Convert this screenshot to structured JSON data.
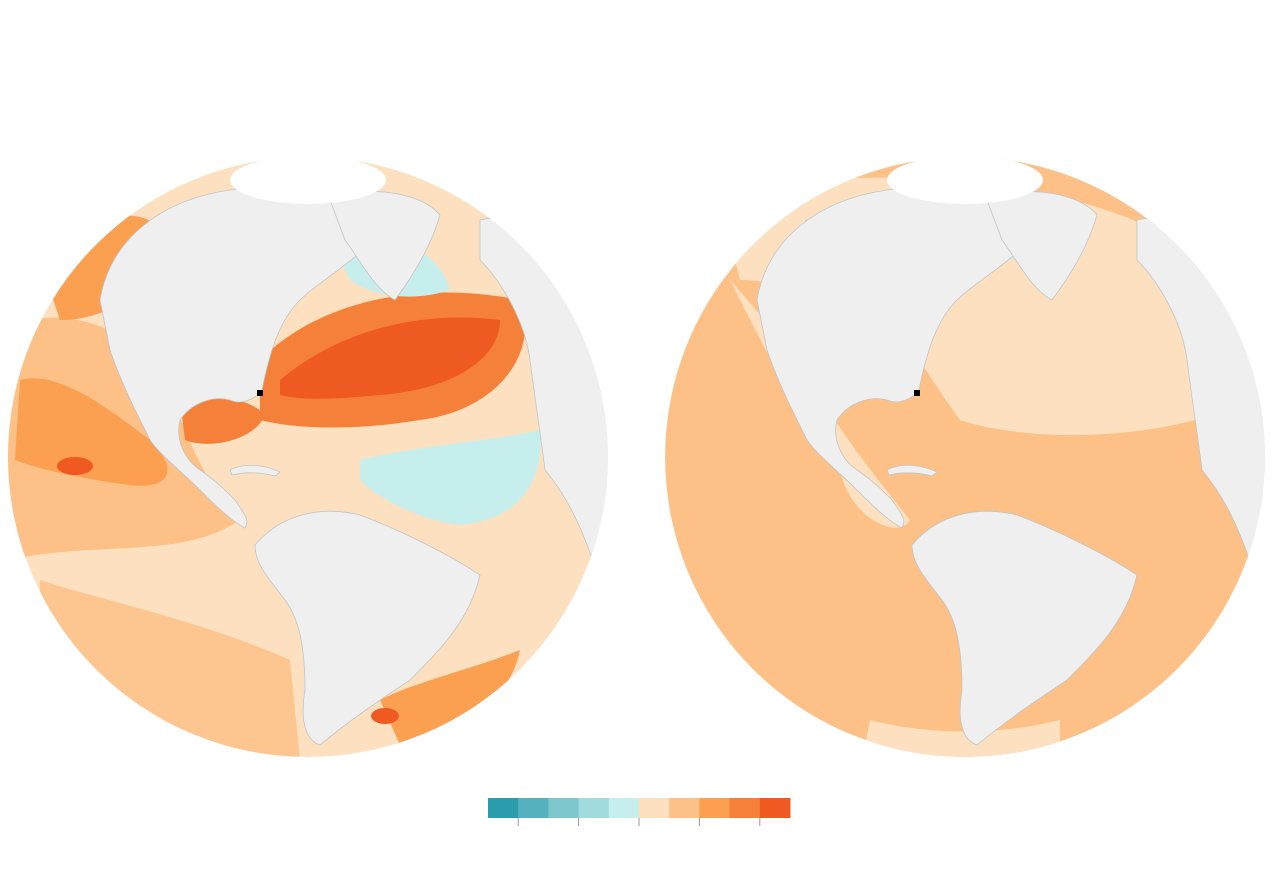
{
  "maps": [
    {
      "name": "observed-anomaly",
      "base_color": "#fde0c0"
    },
    {
      "name": "projected-anomaly",
      "base_color": "#fdc086"
    }
  ],
  "land_color": "#efefef",
  "border_color": "#c4c4c4",
  "ice_color": "#ffffff",
  "marker_color": "#000000",
  "legend": {
    "colors": [
      "#2a9cab",
      "#55b1bd",
      "#7cc6cc",
      "#a1dbde",
      "#c6eeec",
      "#fde0c0",
      "#fdc086",
      "#fb9f50",
      "#f5803a",
      "#ef5a22"
    ],
    "tick_count": 5
  }
}
